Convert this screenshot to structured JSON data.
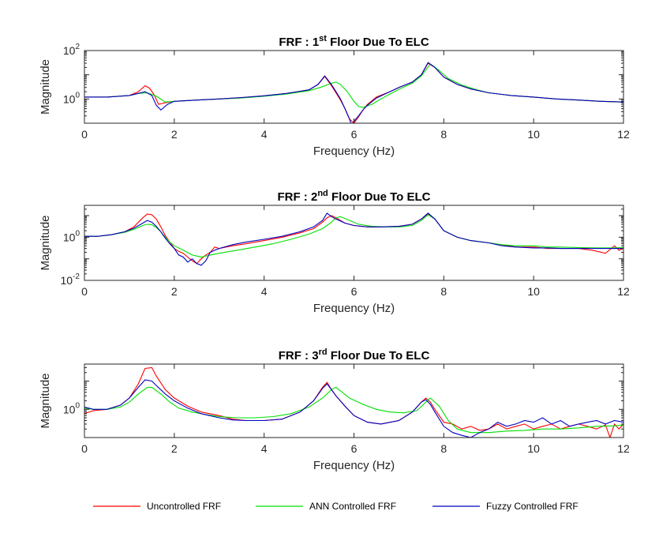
{
  "chart_data": [
    {
      "type": "line",
      "title_prefix": "FRF : 1",
      "title_sup": "st",
      "title_suffix": " Floor Due To ELC",
      "xlabel": "Frequency (Hz)",
      "ylabel": "Magnitude",
      "xlim": [
        0,
        12
      ],
      "xticks": [
        0,
        2,
        4,
        6,
        8,
        10,
        12
      ],
      "yscale": "log",
      "ylim": [
        0.1,
        100
      ],
      "yticks": [
        {
          "value": 1,
          "base": "10",
          "exp": "0"
        },
        {
          "value": 100,
          "base": "10",
          "exp": "2"
        }
      ],
      "series": [
        {
          "name": "Uncontrolled FRF",
          "color": "#ff0000",
          "x": [
            0,
            0.5,
            1.0,
            1.2,
            1.35,
            1.45,
            1.55,
            1.65,
            1.8,
            2.0,
            2.5,
            3.0,
            3.5,
            4.0,
            4.5,
            5.0,
            5.2,
            5.35,
            5.5,
            5.6,
            5.7,
            5.8,
            5.9,
            6.0,
            6.1,
            6.2,
            6.3,
            6.5,
            6.8,
            7.0,
            7.3,
            7.5,
            7.65,
            7.8,
            8.0,
            8.3,
            8.6,
            9.0,
            9.5,
            10.0,
            10.5,
            11.0,
            11.5,
            12.0
          ],
          "y": [
            1.2,
            1.2,
            1.4,
            2.0,
            3.5,
            2.8,
            1.5,
            0.6,
            0.7,
            0.8,
            0.9,
            1.0,
            1.15,
            1.35,
            1.7,
            2.4,
            4.0,
            8.5,
            3.5,
            1.8,
            0.9,
            0.4,
            0.15,
            0.1,
            0.18,
            0.35,
            0.6,
            1.2,
            2.0,
            3.0,
            5.0,
            10.0,
            30.0,
            20.0,
            8.0,
            4.0,
            2.6,
            1.8,
            1.4,
            1.2,
            1.0,
            0.9,
            0.8,
            0.75
          ]
        },
        {
          "name": "ANN Controlled FRF",
          "color": "#00e000",
          "x": [
            0,
            0.5,
            1.0,
            1.2,
            1.4,
            1.6,
            1.8,
            2.0,
            2.5,
            3.0,
            3.5,
            4.0,
            4.5,
            5.0,
            5.3,
            5.5,
            5.6,
            5.7,
            5.85,
            6.0,
            6.1,
            6.2,
            6.4,
            6.6,
            6.8,
            7.0,
            7.3,
            7.5,
            7.7,
            7.9,
            8.1,
            8.4,
            8.7,
            9.0,
            9.5,
            10.0,
            10.5,
            11.0,
            11.5,
            12.0
          ],
          "y": [
            1.2,
            1.2,
            1.4,
            1.7,
            1.8,
            1.3,
            0.75,
            0.8,
            0.9,
            1.0,
            1.1,
            1.3,
            1.6,
            2.2,
            3.2,
            4.5,
            5.0,
            4.0,
            2.0,
            0.8,
            0.5,
            0.45,
            0.6,
            1.0,
            1.6,
            2.5,
            4.5,
            9.0,
            28.0,
            15.0,
            7.0,
            3.8,
            2.5,
            1.8,
            1.4,
            1.2,
            1.0,
            0.9,
            0.8,
            0.75
          ]
        },
        {
          "name": "Fuzzy Controlled FRF",
          "color": "#0000c0",
          "x": [
            0,
            0.5,
            1.0,
            1.2,
            1.35,
            1.5,
            1.6,
            1.7,
            1.85,
            2.0,
            2.5,
            3.0,
            3.5,
            4.0,
            4.5,
            5.0,
            5.2,
            5.35,
            5.5,
            5.6,
            5.7,
            5.8,
            5.9,
            5.95,
            6.0,
            6.1,
            6.2,
            6.3,
            6.5,
            6.8,
            7.0,
            7.3,
            7.5,
            7.65,
            7.8,
            8.0,
            8.3,
            8.6,
            9.0,
            9.5,
            10.0,
            10.5,
            11.0,
            11.5,
            12.0
          ],
          "y": [
            1.2,
            1.2,
            1.4,
            1.7,
            2.0,
            1.4,
            0.55,
            0.35,
            0.6,
            0.8,
            0.9,
            1.0,
            1.15,
            1.35,
            1.7,
            2.4,
            4.0,
            9.0,
            4.0,
            2.0,
            1.0,
            0.4,
            0.15,
            0.08,
            0.12,
            0.2,
            0.35,
            0.55,
            1.1,
            2.0,
            3.0,
            5.0,
            10.0,
            32.0,
            20.0,
            8.0,
            4.0,
            2.6,
            1.8,
            1.4,
            1.2,
            1.0,
            0.9,
            0.8,
            0.75
          ]
        }
      ]
    },
    {
      "type": "line",
      "title_prefix": "FRF : 2",
      "title_sup": "nd",
      "title_suffix": " Floor Due To ELC",
      "xlabel": "Frequency (Hz)",
      "ylabel": "Magnitude",
      "xlim": [
        0,
        12
      ],
      "xticks": [
        0,
        2,
        4,
        6,
        8,
        10,
        12
      ],
      "yscale": "log",
      "ylim": [
        0.01,
        30
      ],
      "yticks": [
        {
          "value": 0.01,
          "base": "10",
          "exp": "-2"
        },
        {
          "value": 1,
          "base": "10",
          "exp": "0"
        }
      ],
      "series": [
        {
          "name": "Uncontrolled FRF",
          "color": "#ff0000",
          "x": [
            0,
            0.3,
            0.6,
            0.9,
            1.1,
            1.3,
            1.4,
            1.5,
            1.6,
            1.7,
            1.8,
            1.9,
            2.0,
            2.1,
            2.2,
            2.3,
            2.4,
            2.5,
            2.6,
            2.7,
            2.8,
            2.9,
            3.0,
            3.3,
            3.6,
            4.0,
            4.4,
            4.8,
            5.1,
            5.3,
            5.4,
            5.5,
            5.6,
            5.8,
            6.0,
            6.3,
            6.6,
            7.0,
            7.3,
            7.5,
            7.65,
            7.8,
            8.0,
            8.3,
            8.6,
            9.0,
            9.3,
            9.6,
            10.0,
            10.3,
            10.6,
            11.0,
            11.3,
            11.6,
            11.8,
            11.9,
            12.0
          ],
          "y": [
            1.1,
            1.1,
            1.3,
            1.8,
            3.0,
            8.0,
            12.0,
            11.0,
            7.0,
            3.0,
            1.2,
            0.6,
            0.3,
            0.22,
            0.18,
            0.12,
            0.08,
            0.06,
            0.1,
            0.15,
            0.2,
            0.35,
            0.3,
            0.4,
            0.5,
            0.7,
            1.0,
            1.6,
            2.5,
            5.0,
            8.0,
            10.0,
            8.0,
            4.5,
            3.5,
            3.0,
            3.0,
            3.2,
            4.0,
            7.0,
            12.0,
            7.0,
            2.0,
            1.0,
            0.7,
            0.55,
            0.45,
            0.35,
            0.35,
            0.3,
            0.3,
            0.3,
            0.25,
            0.18,
            0.4,
            0.25,
            0.3
          ]
        },
        {
          "name": "ANN Controlled FRF",
          "color": "#00e000",
          "x": [
            0,
            0.3,
            0.6,
            0.9,
            1.1,
            1.3,
            1.4,
            1.5,
            1.6,
            1.7,
            1.8,
            1.9,
            2.0,
            2.2,
            2.4,
            2.6,
            2.8,
            3.0,
            3.4,
            3.8,
            4.2,
            4.6,
            5.0,
            5.3,
            5.5,
            5.6,
            5.7,
            5.9,
            6.1,
            6.4,
            6.7,
            7.0,
            7.3,
            7.5,
            7.65,
            7.8,
            8.0,
            8.3,
            8.6,
            9.0,
            9.3,
            9.6,
            10.0,
            10.3,
            10.6,
            11.0,
            11.4,
            11.8,
            12.0
          ],
          "y": [
            1.1,
            1.1,
            1.3,
            1.7,
            2.3,
            3.5,
            4.0,
            3.8,
            2.8,
            1.8,
            1.0,
            0.6,
            0.4,
            0.25,
            0.15,
            0.12,
            0.15,
            0.18,
            0.25,
            0.35,
            0.5,
            0.8,
            1.4,
            2.5,
            5.0,
            8.0,
            9.0,
            6.0,
            4.0,
            3.2,
            3.0,
            3.0,
            3.5,
            6.0,
            11.0,
            7.0,
            2.0,
            1.0,
            0.7,
            0.55,
            0.45,
            0.4,
            0.4,
            0.35,
            0.35,
            0.33,
            0.32,
            0.32,
            0.33
          ]
        },
        {
          "name": "Fuzzy Controlled FRF",
          "color": "#0000c0",
          "x": [
            0,
            0.3,
            0.6,
            0.9,
            1.1,
            1.3,
            1.4,
            1.5,
            1.6,
            1.7,
            1.8,
            1.9,
            2.0,
            2.1,
            2.2,
            2.3,
            2.4,
            2.5,
            2.6,
            2.7,
            2.8,
            2.9,
            3.0,
            3.3,
            3.6,
            4.0,
            4.4,
            4.8,
            5.1,
            5.3,
            5.4,
            5.5,
            5.6,
            5.8,
            6.0,
            6.3,
            6.6,
            7.0,
            7.3,
            7.5,
            7.65,
            7.8,
            8.0,
            8.3,
            8.6,
            9.0,
            9.3,
            9.6,
            10.0,
            10.3,
            10.6,
            11.0,
            11.4,
            11.8,
            12.0
          ],
          "y": [
            1.1,
            1.1,
            1.3,
            1.8,
            2.6,
            4.5,
            6.0,
            5.0,
            3.2,
            1.8,
            0.9,
            0.5,
            0.3,
            0.15,
            0.12,
            0.07,
            0.1,
            0.06,
            0.05,
            0.08,
            0.2,
            0.25,
            0.3,
            0.45,
            0.6,
            0.8,
            1.1,
            1.8,
            3.0,
            6.0,
            13.0,
            9.0,
            7.0,
            4.5,
            3.5,
            3.0,
            3.0,
            3.2,
            4.0,
            7.0,
            13.0,
            7.0,
            2.0,
            1.0,
            0.7,
            0.55,
            0.4,
            0.35,
            0.32,
            0.32,
            0.3,
            0.3,
            0.3,
            0.3,
            0.3
          ]
        }
      ]
    },
    {
      "type": "line",
      "title_prefix": "FRF : 3",
      "title_sup": "rd",
      "title_suffix": " Floor Due To ELC",
      "xlabel": "Frequency (Hz)",
      "ylabel": "Magnitude",
      "xlim": [
        0,
        12
      ],
      "xticks": [
        0,
        2,
        4,
        6,
        8,
        10,
        12
      ],
      "yscale": "log",
      "ylim": [
        0.1,
        40
      ],
      "yticks": [
        {
          "value": 1,
          "base": "10",
          "exp": "0"
        }
      ],
      "series": [
        {
          "name": "Uncontrolled FRF",
          "color": "#ff0000",
          "x": [
            0,
            0.2,
            0.5,
            0.8,
            1.0,
            1.2,
            1.35,
            1.5,
            1.6,
            1.8,
            2.0,
            2.3,
            2.6,
            3.0,
            3.3,
            3.6,
            4.0,
            4.4,
            4.8,
            5.1,
            5.3,
            5.4,
            5.5,
            5.6,
            5.8,
            6.0,
            6.3,
            6.6,
            7.0,
            7.3,
            7.5,
            7.6,
            7.7,
            7.8,
            8.0,
            8.2,
            8.4,
            8.6,
            8.8,
            9.0,
            9.2,
            9.4,
            9.6,
            9.8,
            10.0,
            10.2,
            10.4,
            10.6,
            10.8,
            11.0,
            11.2,
            11.4,
            11.6,
            11.7,
            11.8,
            11.9,
            12.0
          ],
          "y": [
            0.7,
            0.9,
            1.0,
            1.4,
            2.5,
            8.0,
            28.0,
            30.0,
            15.0,
            5.0,
            2.5,
            1.3,
            0.8,
            0.6,
            0.45,
            0.4,
            0.4,
            0.45,
            0.8,
            2.0,
            6.0,
            9.0,
            5.0,
            3.0,
            1.3,
            0.6,
            0.35,
            0.3,
            0.4,
            0.8,
            1.8,
            2.5,
            1.8,
            1.0,
            0.35,
            0.3,
            0.2,
            0.25,
            0.18,
            0.2,
            0.3,
            0.2,
            0.25,
            0.3,
            0.2,
            0.25,
            0.3,
            0.2,
            0.25,
            0.3,
            0.25,
            0.2,
            0.28,
            0.1,
            0.3,
            0.2,
            0.3
          ]
        },
        {
          "name": "ANN Controlled FRF",
          "color": "#00e000",
          "x": [
            0,
            0.2,
            0.5,
            0.8,
            1.0,
            1.2,
            1.4,
            1.5,
            1.7,
            1.9,
            2.1,
            2.4,
            2.7,
            3.0,
            3.4,
            3.8,
            4.2,
            4.6,
            5.0,
            5.3,
            5.5,
            5.6,
            5.7,
            5.9,
            6.2,
            6.5,
            6.8,
            7.1,
            7.4,
            7.6,
            7.7,
            7.9,
            8.1,
            8.3,
            8.6,
            9.0,
            9.4,
            9.8,
            10.2,
            10.6,
            11.0,
            11.4,
            11.8,
            12.0
          ],
          "y": [
            1.1,
            1.0,
            1.0,
            1.2,
            1.8,
            3.5,
            6.0,
            6.0,
            3.5,
            1.8,
            1.1,
            0.8,
            0.65,
            0.55,
            0.5,
            0.5,
            0.55,
            0.7,
            1.2,
            2.5,
            5.0,
            6.0,
            4.5,
            2.5,
            1.5,
            1.0,
            0.8,
            0.75,
            0.9,
            1.8,
            2.5,
            1.3,
            0.4,
            0.2,
            0.15,
            0.15,
            0.17,
            0.18,
            0.2,
            0.2,
            0.22,
            0.25,
            0.26,
            0.28
          ]
        },
        {
          "name": "Fuzzy Controlled FRF",
          "color": "#0000c0",
          "x": [
            0,
            0.2,
            0.5,
            0.8,
            1.0,
            1.2,
            1.35,
            1.5,
            1.6,
            1.8,
            2.0,
            2.3,
            2.6,
            3.0,
            3.3,
            3.6,
            4.0,
            4.4,
            4.8,
            5.1,
            5.3,
            5.4,
            5.5,
            5.6,
            5.8,
            6.0,
            6.3,
            6.6,
            7.0,
            7.3,
            7.5,
            7.6,
            7.7,
            7.8,
            8.0,
            8.2,
            8.4,
            8.6,
            8.8,
            9.0,
            9.2,
            9.4,
            9.6,
            9.8,
            10.0,
            10.2,
            10.4,
            10.6,
            10.8,
            11.0,
            11.2,
            11.4,
            11.6,
            11.8,
            12.0
          ],
          "y": [
            1.2,
            1.0,
            1.0,
            1.4,
            2.5,
            6.0,
            11.0,
            10.0,
            7.0,
            3.5,
            2.0,
            1.1,
            0.7,
            0.5,
            0.42,
            0.4,
            0.4,
            0.45,
            0.8,
            2.0,
            5.5,
            8.0,
            5.0,
            3.0,
            1.3,
            0.6,
            0.35,
            0.3,
            0.4,
            0.8,
            1.8,
            2.2,
            1.5,
            0.8,
            0.25,
            0.15,
            0.12,
            0.1,
            0.15,
            0.2,
            0.35,
            0.25,
            0.3,
            0.4,
            0.35,
            0.5,
            0.3,
            0.4,
            0.25,
            0.3,
            0.35,
            0.4,
            0.3,
            0.4,
            0.35
          ]
        }
      ]
    }
  ],
  "legend": {
    "placement": "bottom",
    "entries": [
      {
        "label": "Uncontrolled FRF",
        "color": "#ff0000"
      },
      {
        "label": "ANN Controlled FRF",
        "color": "#00e000"
      },
      {
        "label": "Fuzzy Controlled FRF",
        "color": "#0000c0"
      }
    ]
  }
}
